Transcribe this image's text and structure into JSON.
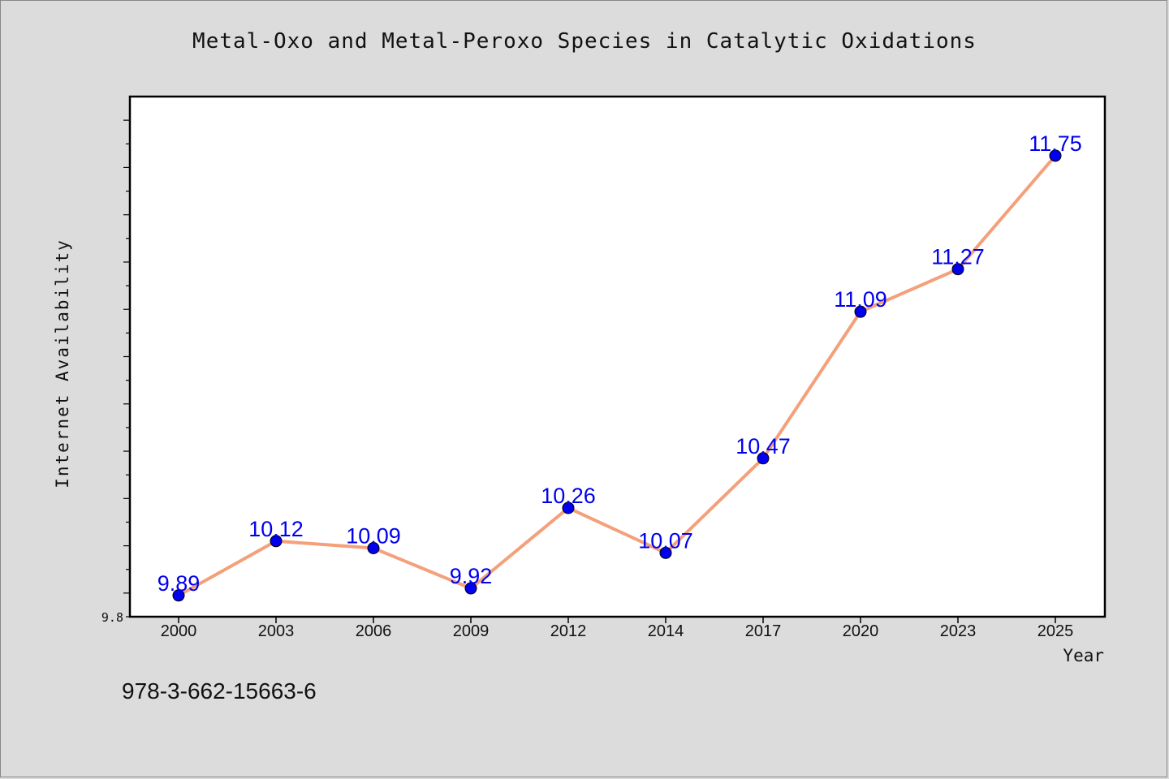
{
  "chart_data": {
    "type": "line",
    "title": "Metal-Oxo and Metal-Peroxo Species in Catalytic Oxidations",
    "xlabel": "Year",
    "ylabel": "Internet Availability",
    "categories": [
      "2000",
      "2003",
      "2006",
      "2009",
      "2012",
      "2014",
      "2017",
      "2020",
      "2023",
      "2025"
    ],
    "values": [
      9.89,
      10.12,
      10.09,
      9.92,
      10.26,
      10.07,
      10.47,
      11.09,
      11.27,
      11.75
    ],
    "data_labels": [
      "9.89",
      "10.12",
      "10.09",
      "9.92",
      "10.26",
      "10.07",
      "10.47",
      "11.09",
      "11.27",
      "11.75"
    ],
    "ylim": [
      9.8,
      12.0
    ],
    "y_tick_labels": [
      "9.8"
    ],
    "grid": false,
    "line_color": "#f4a07a",
    "marker_color": "#0000ee",
    "label_color": "#0000ee"
  },
  "footer": {
    "isbn": "978-3-662-15663-6"
  }
}
